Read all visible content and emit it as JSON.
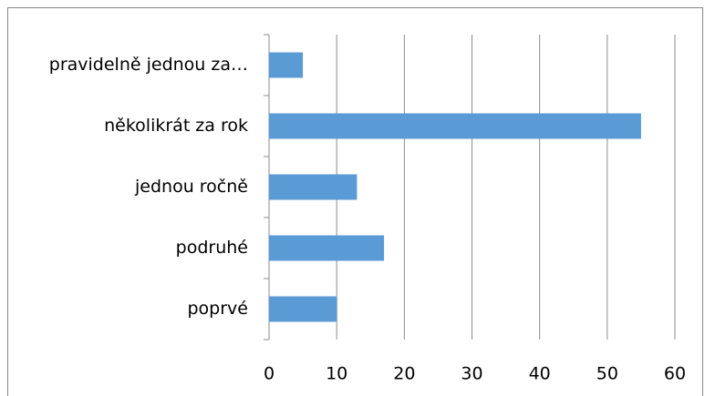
{
  "chart_data": {
    "type": "bar",
    "orientation": "horizontal",
    "categories": [
      "pravidelně jednou za…",
      "několikrát za rok",
      "jednou ročně",
      "podruhé",
      "poprvé"
    ],
    "values": [
      5,
      55,
      13,
      17,
      10
    ],
    "color": "#5b9bd5",
    "xlim": [
      0,
      60
    ],
    "xticks": [
      0,
      10,
      20,
      30,
      40,
      50,
      60
    ],
    "grid": true
  }
}
